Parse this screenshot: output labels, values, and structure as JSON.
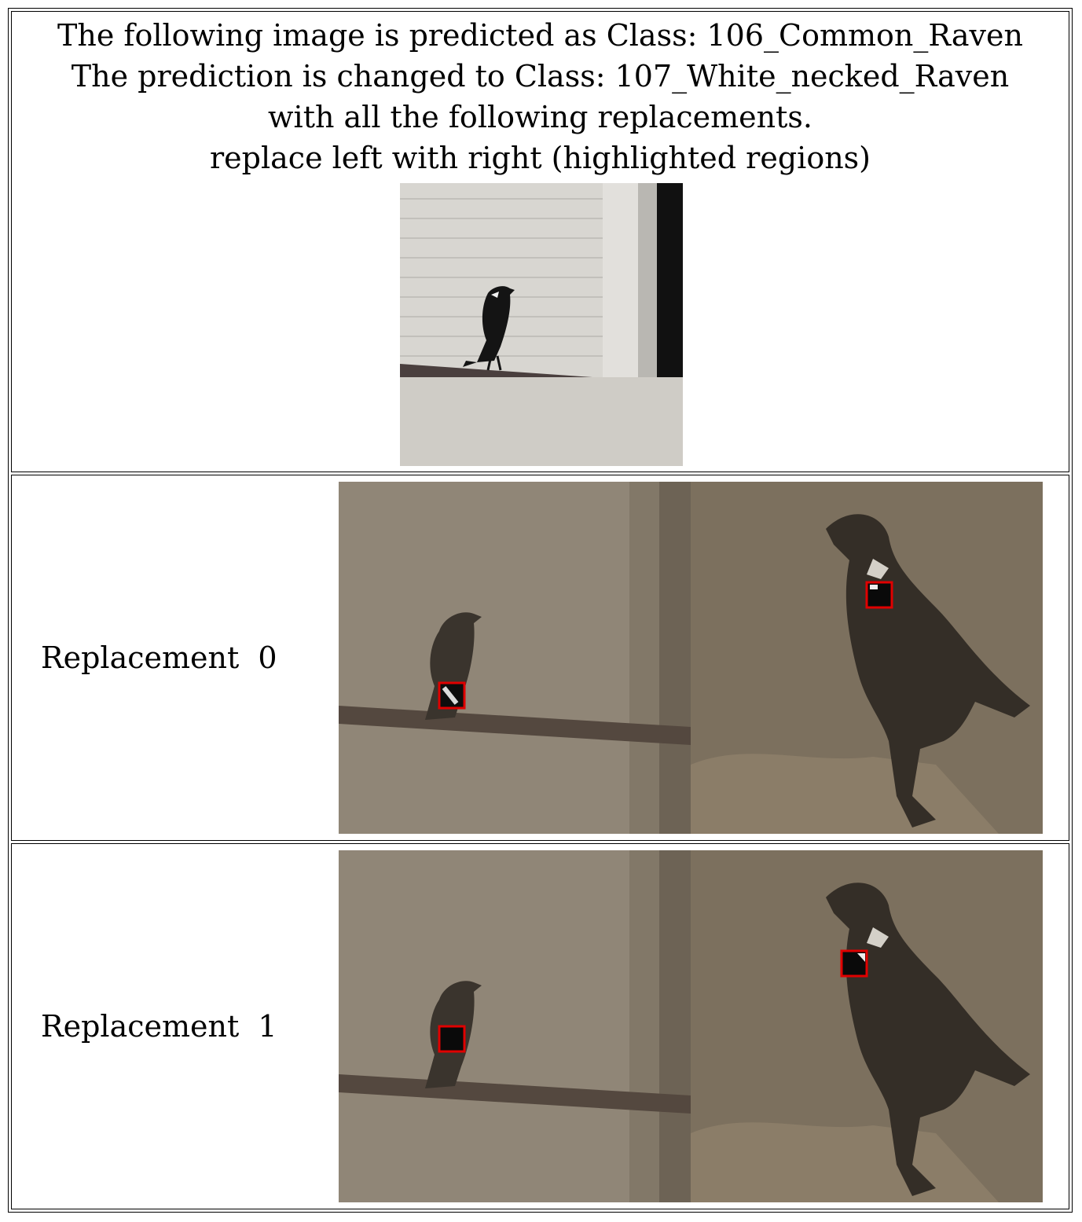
{
  "header": {
    "line1": "The following image is predicted as Class: 106_Common_Raven",
    "line2": "The prediction is changed to Class: 107_White_necked_Raven",
    "line3": "with all the following replacements.",
    "line4": "replace left with right (highlighted regions)"
  },
  "rows": [
    {
      "label": "Replacement  0"
    },
    {
      "label": "Replacement  1"
    }
  ],
  "colors": {
    "highlight": "#e00000",
    "wall": "#d6d4cf",
    "overlay": "#7a6e5c",
    "bird": "#151515"
  }
}
